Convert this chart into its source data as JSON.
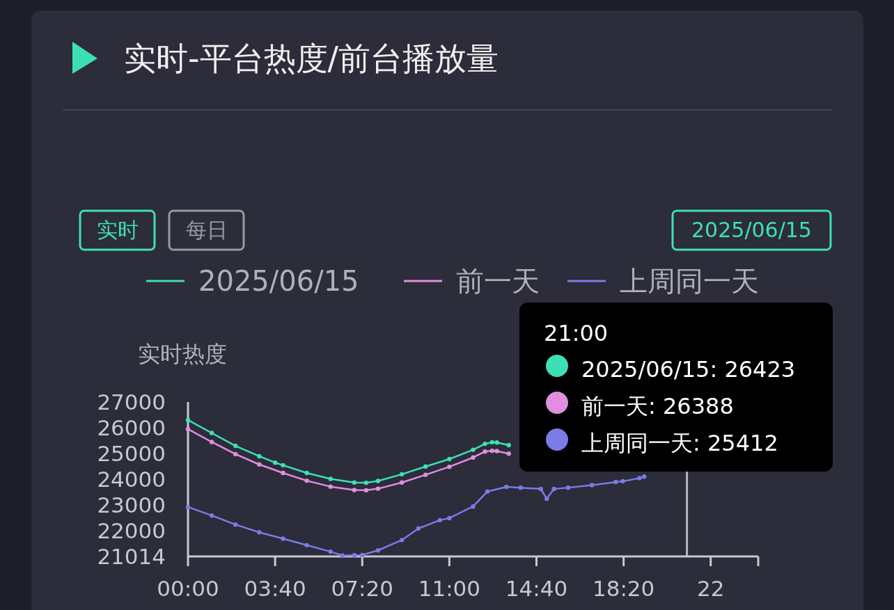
{
  "chart_data": {
    "type": "line",
    "title": "实时-平台热度/前台播放量",
    "ylabel": "实时热度",
    "annotations": [
      "实时",
      "每日",
      "2025/06/15",
      "21:00",
      "2025/06/15: 26423",
      "前一天: 26388",
      "上周同一天: 25412"
    ],
    "series": [
      {
        "name": "2025/06/15",
        "color": "#3de0b4",
        "x": [
          0,
          1,
          2,
          3,
          3.67,
          4,
          5,
          6,
          7,
          7.5,
          8,
          9,
          10,
          11,
          12,
          12.5,
          12.8,
          13,
          13.5
        ],
        "values": [
          26300,
          25800,
          25300,
          24900,
          24650,
          24550,
          24250,
          24020,
          23880,
          23870,
          23940,
          24200,
          24500,
          24790,
          25150,
          25380,
          25440,
          25430,
          25330
        ]
      },
      {
        "name": "前一天",
        "color": "#e08ee0",
        "x": [
          0,
          1,
          2,
          3,
          4,
          5,
          6,
          7,
          7.5,
          8,
          9,
          10,
          11,
          12,
          12.5,
          12.8,
          13,
          13.5
        ],
        "values": [
          25950,
          25450,
          24980,
          24580,
          24250,
          23950,
          23720,
          23590,
          23580,
          23640,
          23880,
          24180,
          24490,
          24850,
          25080,
          25110,
          25100,
          25000
        ]
      },
      {
        "name": "上周同一天",
        "color": "#7b7be6",
        "x": [
          0,
          1,
          2,
          3,
          4,
          5,
          6,
          6.5,
          7,
          7.33,
          8,
          9,
          9.7,
          10.6,
          11,
          12,
          12.6,
          13.4,
          14,
          14.85,
          15.1,
          15.4,
          16,
          17,
          18,
          18.3,
          19,
          19.2
        ],
        "values": [
          22930,
          22600,
          22250,
          21950,
          21700,
          21450,
          21200,
          21050,
          21060,
          21070,
          21250,
          21650,
          22100,
          22420,
          22500,
          22950,
          23530,
          23710,
          23680,
          23630,
          23250,
          23630,
          23680,
          23780,
          23900,
          23930,
          24050,
          24110
        ]
      }
    ],
    "xlim": [
      0,
      24
    ],
    "xticks": [
      {
        "value": 0,
        "label": "00:00"
      },
      {
        "value": 3.6667,
        "label": "03:40"
      },
      {
        "value": 7.3333,
        "label": "07:20"
      },
      {
        "value": 11,
        "label": "11:00"
      },
      {
        "value": 14.6667,
        "label": "14:40"
      },
      {
        "value": 18.3333,
        "label": "18:20"
      },
      {
        "value": 22,
        "label": "22"
      },
      {
        "value": 24,
        "label": null
      }
    ],
    "ylim": [
      21014,
      27000
    ],
    "yticks": [
      21014,
      22000,
      23000,
      24000,
      25000,
      26000,
      27000
    ],
    "ref_lines": [
      {
        "axis": "x",
        "value": 21,
        "color": "#b8b8c0"
      }
    ],
    "legend": "top",
    "marker": "circle",
    "line_style": "solid",
    "grid": false
  }
}
